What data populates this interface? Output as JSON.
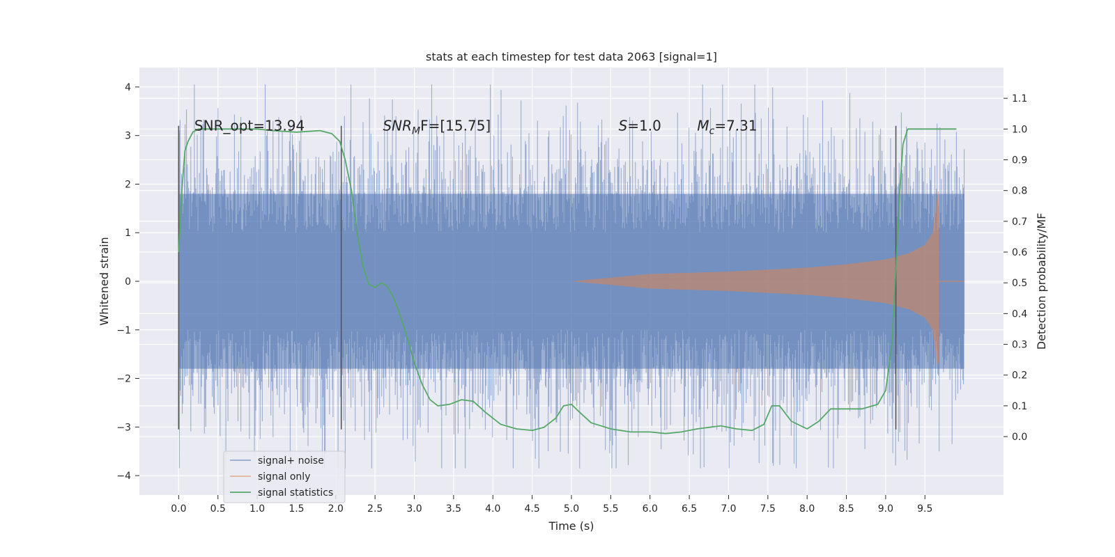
{
  "chart_data": {
    "type": "line",
    "title": "stats at each timestep for test data 2063 [signal=1]",
    "xlabel": "Time (s)",
    "ylabel_left": "Whitened strain",
    "ylabel_right": "Detection probability/MF",
    "xlim": [
      -0.5,
      10.5
    ],
    "ylim_left": [
      -4.4,
      4.4
    ],
    "ylim_right": [
      -0.19,
      1.2
    ],
    "x_ticks": [
      0.0,
      0.5,
      1.0,
      1.5,
      2.0,
      2.5,
      3.0,
      3.5,
      4.0,
      4.5,
      5.0,
      5.5,
      6.0,
      6.5,
      7.0,
      7.5,
      8.0,
      8.5,
      9.0,
      9.5
    ],
    "y_ticks_left": [
      4,
      3,
      2,
      1,
      0,
      -1,
      -2,
      -3,
      -4
    ],
    "y_ticks_right": [
      1.1,
      1.0,
      0.9,
      0.8,
      0.7,
      0.6,
      0.5,
      0.4,
      0.3,
      0.2,
      0.1,
      0.0
    ],
    "grid": true,
    "legend_position": "lower-left",
    "annotations": [
      {
        "kind": "plain",
        "text": "SNR_opt=13.94",
        "x": 0.2,
        "y": 3.2
      },
      {
        "kind": "sub",
        "base": "SNR",
        "sub": "M",
        "rest": "F=[15.75]",
        "x": 2.6,
        "y": 3.2
      },
      {
        "kind": "sub",
        "base": "S",
        "sub": "",
        "rest": "=1.0",
        "x": 5.6,
        "y": 3.2
      },
      {
        "kind": "sub",
        "base": "M",
        "sub": "c",
        "rest": "=7.31",
        "x": 6.6,
        "y": 3.2
      }
    ],
    "vertical_markers": [
      0.0,
      2.07,
      9.13
    ],
    "vertical_marker_range": [
      -3.05,
      3.2
    ],
    "series": [
      {
        "name": "signal+ noise",
        "color": "#4c72b0",
        "style": "noise",
        "x_range": [
          0.0,
          10.0
        ],
        "typical_range": [
          -1.8,
          1.8
        ],
        "max": 4.05,
        "min": -3.85
      },
      {
        "name": "signal only",
        "color": "#dd8452",
        "style": "chirp",
        "x_start": 5.0,
        "x_peak": 9.67,
        "x_end": 10.0,
        "envelope": [
          [
            5.0,
            0.0
          ],
          [
            6.0,
            0.15
          ],
          [
            7.0,
            0.2
          ],
          [
            8.0,
            0.28
          ],
          [
            8.5,
            0.35
          ],
          [
            9.0,
            0.45
          ],
          [
            9.3,
            0.58
          ],
          [
            9.5,
            0.75
          ],
          [
            9.6,
            1.0
          ],
          [
            9.67,
            1.85
          ]
        ],
        "min_at_peak": -1.7
      },
      {
        "name": "signal statistics",
        "color": "#55a868",
        "style": "line",
        "axis": "right",
        "points": [
          [
            0.0,
            0.6
          ],
          [
            0.04,
            0.8
          ],
          [
            0.08,
            0.93
          ],
          [
            0.12,
            0.96
          ],
          [
            0.18,
            0.99
          ],
          [
            0.25,
            1.0
          ],
          [
            0.5,
            1.0
          ],
          [
            0.8,
            1.0
          ],
          [
            1.0,
            1.0
          ],
          [
            1.2,
            0.995
          ],
          [
            1.5,
            0.99
          ],
          [
            1.8,
            0.995
          ],
          [
            1.95,
            0.985
          ],
          [
            2.05,
            0.96
          ],
          [
            2.12,
            0.9
          ],
          [
            2.2,
            0.8
          ],
          [
            2.28,
            0.65
          ],
          [
            2.35,
            0.55
          ],
          [
            2.42,
            0.495
          ],
          [
            2.5,
            0.485
          ],
          [
            2.58,
            0.5
          ],
          [
            2.65,
            0.49
          ],
          [
            2.72,
            0.46
          ],
          [
            2.8,
            0.41
          ],
          [
            2.9,
            0.33
          ],
          [
            3.0,
            0.24
          ],
          [
            3.1,
            0.17
          ],
          [
            3.2,
            0.12
          ],
          [
            3.3,
            0.1
          ],
          [
            3.45,
            0.105
          ],
          [
            3.6,
            0.12
          ],
          [
            3.75,
            0.115
          ],
          [
            3.9,
            0.08
          ],
          [
            4.1,
            0.04
          ],
          [
            4.3,
            0.025
          ],
          [
            4.5,
            0.02
          ],
          [
            4.65,
            0.03
          ],
          [
            4.8,
            0.06
          ],
          [
            4.9,
            0.1
          ],
          [
            5.0,
            0.105
          ],
          [
            5.1,
            0.08
          ],
          [
            5.25,
            0.045
          ],
          [
            5.5,
            0.025
          ],
          [
            5.75,
            0.015
          ],
          [
            6.0,
            0.015
          ],
          [
            6.2,
            0.01
          ],
          [
            6.4,
            0.015
          ],
          [
            6.6,
            0.025
          ],
          [
            6.9,
            0.035
          ],
          [
            7.1,
            0.025
          ],
          [
            7.3,
            0.02
          ],
          [
            7.45,
            0.04
          ],
          [
            7.55,
            0.1
          ],
          [
            7.65,
            0.1
          ],
          [
            7.8,
            0.05
          ],
          [
            8.0,
            0.025
          ],
          [
            8.15,
            0.05
          ],
          [
            8.3,
            0.09
          ],
          [
            8.5,
            0.09
          ],
          [
            8.7,
            0.09
          ],
          [
            8.9,
            0.105
          ],
          [
            9.0,
            0.15
          ],
          [
            9.08,
            0.3
          ],
          [
            9.13,
            0.55
          ],
          [
            9.18,
            0.8
          ],
          [
            9.22,
            0.95
          ],
          [
            9.28,
            1.0
          ],
          [
            9.5,
            1.0
          ],
          [
            9.7,
            1.0
          ],
          [
            9.9,
            1.0
          ]
        ]
      }
    ]
  }
}
